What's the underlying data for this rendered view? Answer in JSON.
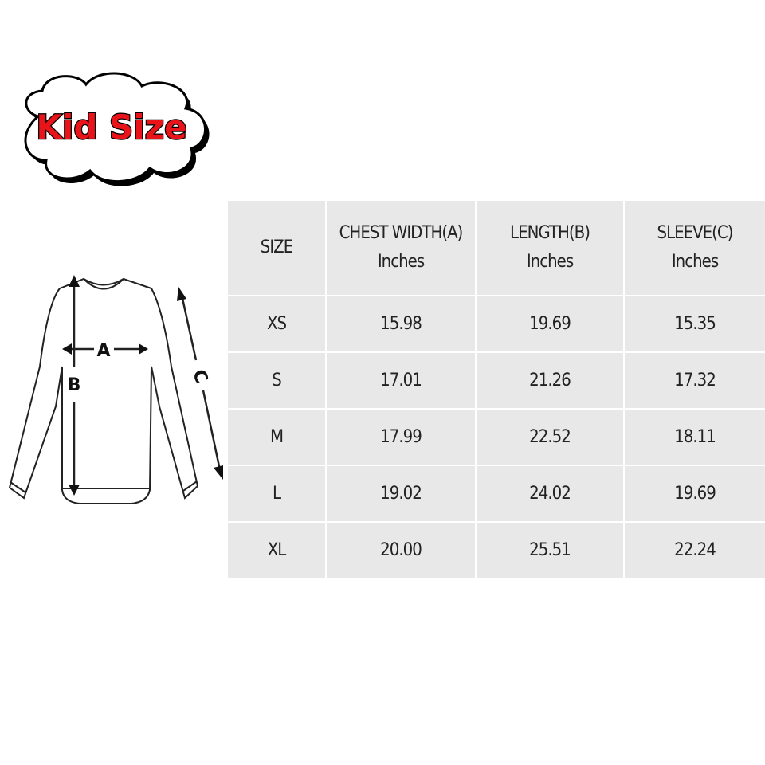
{
  "badge": {
    "text": "Kid Size",
    "color": "#e8141a"
  },
  "diagram": {
    "labels": {
      "a": "A",
      "b": "B",
      "c": "C"
    }
  },
  "table": {
    "headers": [
      {
        "title": "SIZE",
        "unit": ""
      },
      {
        "title": "CHEST WIDTH(A)",
        "unit": "Inches"
      },
      {
        "title": "LENGTH(B)",
        "unit": "Inches"
      },
      {
        "title": "SLEEVE(C)",
        "unit": "Inches"
      }
    ],
    "rows": [
      [
        "XS",
        "15.98",
        "19.69",
        "15.35"
      ],
      [
        "S",
        "17.01",
        "21.26",
        "17.32"
      ],
      [
        "M",
        "17.99",
        "22.52",
        "18.11"
      ],
      [
        "L",
        "19.02",
        "24.02",
        "19.69"
      ],
      [
        "XL",
        "20.00",
        "25.51",
        "22.24"
      ]
    ]
  }
}
